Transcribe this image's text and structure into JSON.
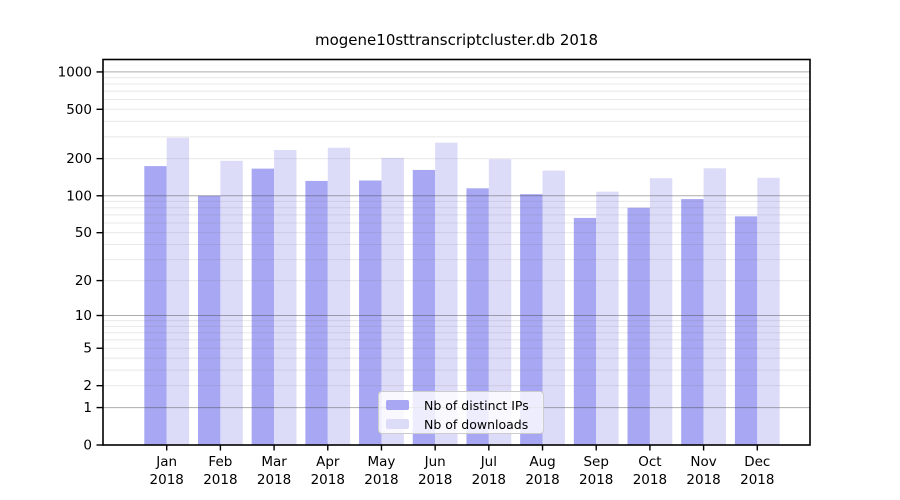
{
  "title": "mogene10sttranscriptcluster.db 2018",
  "chart_data": {
    "type": "bar",
    "title": "mogene10sttranscriptcluster.db 2018",
    "categories": [
      "Jan 2018",
      "Feb 2018",
      "Mar 2018",
      "Apr 2018",
      "May 2018",
      "Jun 2018",
      "Jul 2018",
      "Aug 2018",
      "Sep 2018",
      "Oct 2018",
      "Nov 2018",
      "Dec 2018"
    ],
    "series": [
      {
        "name": "Nb of distinct IPs",
        "color": "#a7a7f3",
        "values": [
          174,
          100,
          166,
          132,
          133,
          162,
          115,
          103,
          66,
          80,
          94,
          68
        ]
      },
      {
        "name": "Nb of downloads",
        "color": "#dcdcf9",
        "values": [
          295,
          192,
          235,
          245,
          203,
          269,
          198,
          160,
          108,
          139,
          167,
          140
        ]
      }
    ],
    "xlabel": "",
    "ylabel": "",
    "yscale": "log1p",
    "yticks": [
      0,
      1,
      2,
      5,
      10,
      20,
      50,
      100,
      200,
      500,
      1000
    ],
    "ylim": [
      0,
      1260
    ],
    "grid": true,
    "legend_position": "bottom-center"
  },
  "colors": {
    "background": "#ffffff",
    "axis": "#000000",
    "major_grid": "#b0b0b0",
    "minor_grid": "#e8e8e8",
    "tick_label": "#000000"
  }
}
